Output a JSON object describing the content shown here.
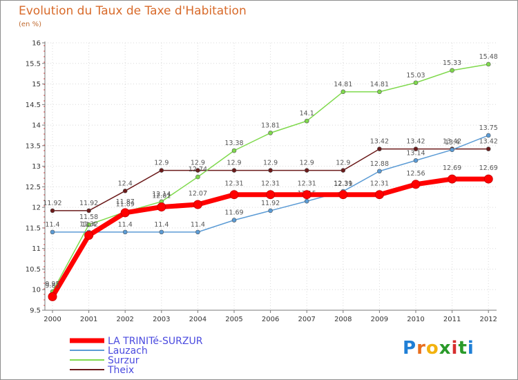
{
  "chart_data": {
    "type": "line",
    "title": "Evolution du Taux de Taxe d'Habitation",
    "subtitle": "(en %)",
    "x": [
      2000,
      2001,
      2002,
      2003,
      2004,
      2005,
      2006,
      2007,
      2008,
      2009,
      2010,
      2011,
      2012
    ],
    "ylim": [
      9.5,
      16
    ],
    "yticks": [
      9.5,
      10,
      10.5,
      11,
      11.5,
      12,
      12.5,
      13,
      13.5,
      14,
      14.5,
      15,
      15.5,
      16
    ],
    "grid": true,
    "legend_position": "bottom-left",
    "series": [
      {
        "name": "Theix",
        "color": "#6b1a1a",
        "values": [
          11.92,
          11.92,
          12.4,
          12.9,
          12.9,
          12.9,
          12.9,
          12.9,
          12.9,
          13.42,
          13.42,
          13.42,
          13.42
        ],
        "labels": [
          "11.92",
          "11.92",
          "12.4",
          "12.9",
          "12.9",
          "12.9",
          "12.9",
          "12.9",
          "12.9",
          "13.42",
          "13.42",
          "13.42",
          "13.42"
        ]
      },
      {
        "name": "Surzur",
        "color": "#7fd94c",
        "values": [
          9.95,
          11.58,
          11.89,
          12.14,
          12.74,
          13.38,
          13.81,
          14.1,
          14.81,
          14.81,
          15.03,
          15.33,
          15.48
        ],
        "labels": [
          "9.95",
          "11.58",
          "11.89",
          "12.14",
          "12.74",
          "13.38",
          "13.81",
          "14.1",
          "14.81",
          "14.81",
          "15.03",
          "15.33",
          "15.48"
        ]
      },
      {
        "name": "Lauzach",
        "color": "#5b9bd5",
        "values": [
          11.4,
          11.4,
          11.4,
          11.4,
          11.4,
          11.69,
          11.92,
          12.15,
          12.39,
          12.88,
          13.14,
          13.4,
          13.75
        ],
        "labels": [
          "11.4",
          "11.4",
          "11.4",
          "11.4",
          "11.4",
          "11.69",
          "11.92",
          "12.15",
          "12.39",
          "12.88",
          "13.14",
          "13.4",
          "13.75"
        ]
      },
      {
        "name": "LA TRINITé-SURZUR",
        "color": "#ff0000",
        "values": [
          9.83,
          11.32,
          11.87,
          12.01,
          12.07,
          12.31,
          12.31,
          12.31,
          12.31,
          12.31,
          12.56,
          12.69,
          12.69
        ],
        "labels": [
          "9.83",
          "11.32",
          "11.87",
          "12.01",
          "12.07",
          "12.31",
          "12.31",
          "12.31",
          "12.31",
          "12.31",
          "12.56",
          "12.69",
          "12.69"
        ]
      }
    ],
    "legend_order": [
      "LA TRINITé-SURZUR",
      "Lauzach",
      "Surzur",
      "Theix"
    ]
  },
  "legend_text_color": "#4a4adf",
  "brand": {
    "letters": [
      "P",
      "r",
      "o",
      "x",
      "i",
      "t",
      "i"
    ],
    "colors": [
      "#1f7fd6",
      "#e86f1e",
      "#f2b20f",
      "#2a9a2a",
      "#d62f2f",
      "#2a9a2a",
      "#1f7fd6"
    ]
  }
}
